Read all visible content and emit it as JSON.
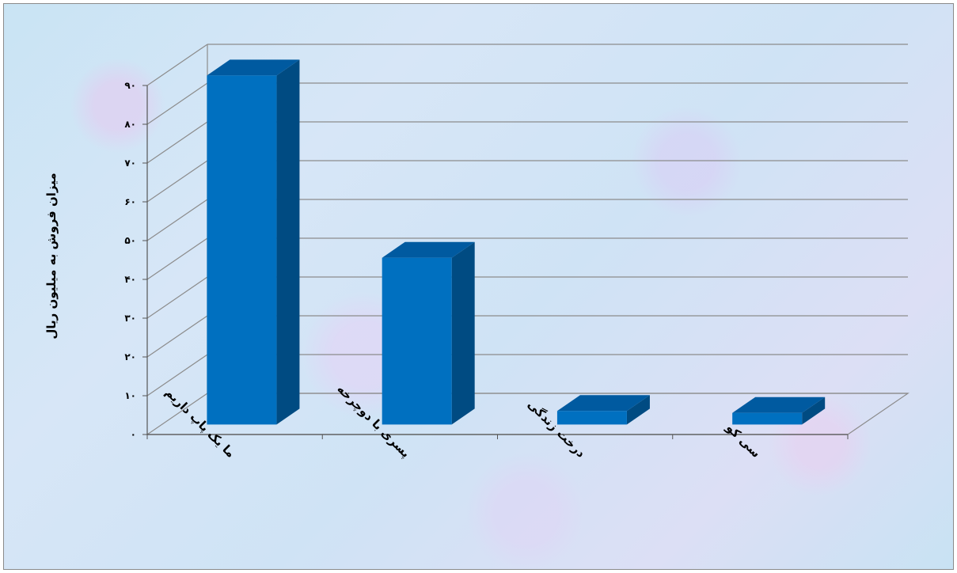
{
  "chart_data": {
    "type": "bar",
    "style": "3d-column",
    "title": "",
    "xlabel": "",
    "ylabel": "میزان فروش به میلیون ریال",
    "categories": [
      "ما یک پاپ داریم",
      "پسری با دوچرخه",
      "درخت زندگی",
      "سی کو"
    ],
    "values": [
      90,
      43,
      3.5,
      3
    ],
    "ylim": [
      0,
      90
    ],
    "yticks": [
      "۰",
      "۱۰",
      "۲۰",
      "۳۰",
      "۴۰",
      "۵۰",
      "۶۰",
      "۷۰",
      "۸۰",
      "۹۰"
    ],
    "grid": true,
    "legend": "none",
    "colors": {
      "bar_front": "#0070c0",
      "bar_side": "#004b82",
      "bar_top": "#005aa0",
      "grid": "#8c8c8c",
      "frame_border": "#8a8a8a"
    }
  }
}
